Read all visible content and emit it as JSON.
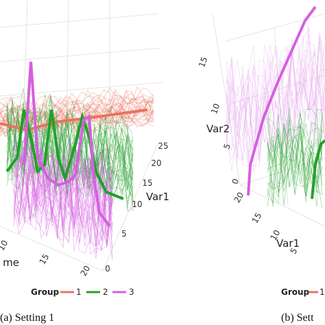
{
  "panels": [
    {
      "caption": "(a) Setting 1",
      "var1_ticks": [
        "25",
        "20",
        "15",
        "10",
        "5",
        "0"
      ],
      "var1_label": "Var1",
      "time_ticks": [
        "10",
        "15",
        "20"
      ],
      "time_label": "me",
      "legend": {
        "title": "Group",
        "entries": [
          "1",
          "2",
          "3"
        ]
      }
    },
    {
      "caption": "(b) Sett",
      "var2_ticks": [
        "15",
        "10",
        "5",
        "0"
      ],
      "var2_label": "Var2",
      "var1_ticks": [
        "20",
        "15",
        "10",
        "5"
      ],
      "var1_label": "Var1",
      "legend": {
        "title": "Group",
        "entries": [
          "1"
        ]
      }
    }
  ]
}
